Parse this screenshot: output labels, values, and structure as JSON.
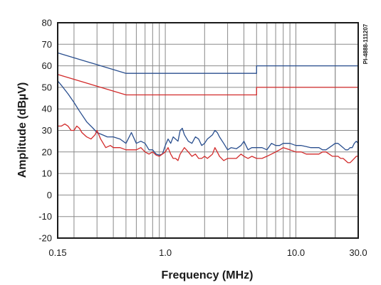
{
  "chart_data": {
    "type": "line",
    "xlabel": "Frequency (MHz)",
    "ylabel": "Amplitude (dBµV)",
    "side_code": "PI-4888-111207",
    "xscale": "log",
    "xlim": [
      0.15,
      30.0
    ],
    "ylim": [
      -20,
      80
    ],
    "x_ticks": [
      {
        "value": 0.15,
        "label": "0.15"
      },
      {
        "value": 1.0,
        "label": "1.0"
      },
      {
        "value": 10.0,
        "label": "10.0"
      },
      {
        "value": 30.0,
        "label": "30.0"
      }
    ],
    "y_ticks": [
      -20,
      -10,
      0,
      10,
      20,
      30,
      40,
      50,
      60,
      70,
      80
    ],
    "grid": {
      "horizontal": true,
      "vertical_log_minor": true
    },
    "colors": {
      "blue": "#2a4f8f",
      "red": "#d22a2a",
      "grid": "#8a8a8a",
      "frame": "#1a1a1a"
    },
    "series": [
      {
        "color": "#2a4f8f",
        "points": [
          [
            0.15,
            66
          ],
          [
            0.5,
            56.5
          ],
          [
            5.0,
            56.5
          ],
          [
            5.0,
            60
          ],
          [
            30.0,
            60
          ]
        ]
      },
      {
        "color": "#d22a2a",
        "points": [
          [
            0.15,
            56
          ],
          [
            0.5,
            46.5
          ],
          [
            5.0,
            46.5
          ],
          [
            5.0,
            50
          ],
          [
            30.0,
            50
          ]
        ]
      },
      {
        "color": "#2a4f8f",
        "points": [
          [
            0.15,
            53
          ],
          [
            0.16,
            51
          ],
          [
            0.18,
            47
          ],
          [
            0.2,
            43
          ],
          [
            0.22,
            39
          ],
          [
            0.25,
            34
          ],
          [
            0.28,
            31
          ],
          [
            0.3,
            29
          ],
          [
            0.33,
            28
          ],
          [
            0.36,
            27
          ],
          [
            0.4,
            27
          ],
          [
            0.45,
            26
          ],
          [
            0.5,
            24
          ],
          [
            0.55,
            29
          ],
          [
            0.6,
            24
          ],
          [
            0.65,
            25
          ],
          [
            0.7,
            24
          ],
          [
            0.75,
            21
          ],
          [
            0.8,
            21
          ],
          [
            0.85,
            19
          ],
          [
            0.9,
            18.5
          ],
          [
            0.95,
            19
          ],
          [
            1.0,
            23
          ],
          [
            1.05,
            26
          ],
          [
            1.1,
            24
          ],
          [
            1.15,
            27
          ],
          [
            1.25,
            25
          ],
          [
            1.3,
            30
          ],
          [
            1.35,
            31
          ],
          [
            1.4,
            28
          ],
          [
            1.5,
            25
          ],
          [
            1.6,
            24
          ],
          [
            1.7,
            27
          ],
          [
            1.8,
            26
          ],
          [
            1.9,
            23
          ],
          [
            2.0,
            24
          ],
          [
            2.1,
            26
          ],
          [
            2.2,
            27
          ],
          [
            2.3,
            28
          ],
          [
            2.4,
            30
          ],
          [
            2.5,
            29
          ],
          [
            2.6,
            27
          ],
          [
            2.8,
            24
          ],
          [
            3.0,
            21
          ],
          [
            3.2,
            22
          ],
          [
            3.5,
            21.5
          ],
          [
            3.8,
            23
          ],
          [
            4.0,
            25
          ],
          [
            4.3,
            21
          ],
          [
            4.6,
            22
          ],
          [
            5.0,
            22
          ],
          [
            5.5,
            22
          ],
          [
            6.0,
            21
          ],
          [
            6.5,
            24
          ],
          [
            7.0,
            23
          ],
          [
            7.5,
            23
          ],
          [
            8.0,
            24
          ],
          [
            9.0,
            24
          ],
          [
            10.0,
            23
          ],
          [
            11.0,
            23
          ],
          [
            12.0,
            22.5
          ],
          [
            13.0,
            22
          ],
          [
            14.0,
            22
          ],
          [
            15.0,
            22
          ],
          [
            16.0,
            21
          ],
          [
            17.0,
            21
          ],
          [
            18.0,
            22
          ],
          [
            19.0,
            23
          ],
          [
            20.0,
            24
          ],
          [
            21.0,
            24
          ],
          [
            22.0,
            23
          ],
          [
            23.0,
            22
          ],
          [
            24.0,
            21
          ],
          [
            25.0,
            21
          ],
          [
            26.0,
            22
          ],
          [
            27.0,
            22
          ],
          [
            28.0,
            24
          ],
          [
            29.0,
            25
          ],
          [
            30.0,
            24
          ]
        ]
      },
      {
        "color": "#d22a2a",
        "points": [
          [
            0.15,
            32
          ],
          [
            0.16,
            32
          ],
          [
            0.17,
            33
          ],
          [
            0.18,
            32
          ],
          [
            0.19,
            30
          ],
          [
            0.2,
            30
          ],
          [
            0.21,
            32
          ],
          [
            0.22,
            31
          ],
          [
            0.23,
            29
          ],
          [
            0.25,
            27
          ],
          [
            0.27,
            26
          ],
          [
            0.29,
            28
          ],
          [
            0.3,
            30
          ],
          [
            0.32,
            26
          ],
          [
            0.35,
            22
          ],
          [
            0.38,
            23
          ],
          [
            0.4,
            22
          ],
          [
            0.45,
            22
          ],
          [
            0.5,
            21
          ],
          [
            0.55,
            21
          ],
          [
            0.6,
            21
          ],
          [
            0.65,
            22
          ],
          [
            0.7,
            20
          ],
          [
            0.75,
            19
          ],
          [
            0.8,
            20
          ],
          [
            0.85,
            18.5
          ],
          [
            0.9,
            18
          ],
          [
            0.95,
            19
          ],
          [
            1.0,
            20
          ],
          [
            1.05,
            22
          ],
          [
            1.1,
            19
          ],
          [
            1.15,
            17
          ],
          [
            1.2,
            17
          ],
          [
            1.25,
            16
          ],
          [
            1.3,
            19
          ],
          [
            1.4,
            22
          ],
          [
            1.5,
            20
          ],
          [
            1.6,
            18
          ],
          [
            1.7,
            19
          ],
          [
            1.8,
            17
          ],
          [
            1.9,
            17
          ],
          [
            2.0,
            18
          ],
          [
            2.1,
            17
          ],
          [
            2.2,
            18
          ],
          [
            2.3,
            19
          ],
          [
            2.4,
            22
          ],
          [
            2.5,
            20
          ],
          [
            2.6,
            18
          ],
          [
            2.8,
            16
          ],
          [
            3.0,
            17
          ],
          [
            3.2,
            17
          ],
          [
            3.5,
            17
          ],
          [
            3.8,
            19
          ],
          [
            4.0,
            18
          ],
          [
            4.3,
            17
          ],
          [
            4.6,
            18
          ],
          [
            5.0,
            17
          ],
          [
            5.5,
            17
          ],
          [
            6.0,
            18
          ],
          [
            6.5,
            19
          ],
          [
            7.0,
            20
          ],
          [
            7.5,
            21
          ],
          [
            8.0,
            22
          ],
          [
            9.0,
            21
          ],
          [
            10.0,
            20
          ],
          [
            11.0,
            20
          ],
          [
            12.0,
            19
          ],
          [
            13.0,
            19
          ],
          [
            14.0,
            19
          ],
          [
            15.0,
            19
          ],
          [
            16.0,
            20
          ],
          [
            17.0,
            20
          ],
          [
            18.0,
            19
          ],
          [
            19.0,
            18
          ],
          [
            20.0,
            18
          ],
          [
            21.0,
            18
          ],
          [
            22.0,
            17
          ],
          [
            23.0,
            17
          ],
          [
            24.0,
            16
          ],
          [
            25.0,
            15
          ],
          [
            26.0,
            15
          ],
          [
            27.0,
            16
          ],
          [
            28.0,
            17
          ],
          [
            29.0,
            18
          ],
          [
            30.0,
            18
          ]
        ]
      }
    ]
  }
}
